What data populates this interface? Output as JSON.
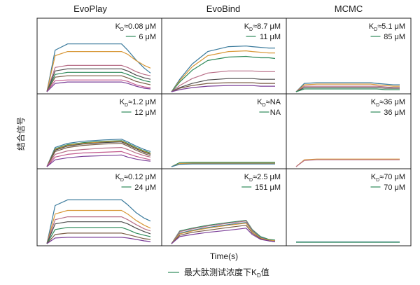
{
  "figure": {
    "column_titles": [
      "EvoPlay",
      "EvoBind",
      "MCMC"
    ],
    "ylabel": "结合信号",
    "xlabel": "Time(s)",
    "caption": {
      "prefix": "最大肽测试浓度下K",
      "sub": "D",
      "suffix": "值"
    }
  },
  "chart_data": [
    {
      "type": "line",
      "row": 0,
      "col": 0,
      "method": "EvoPlay",
      "kd_label": "≈0.08 μM",
      "conc_label": "6 μM",
      "x": [
        0,
        0.08,
        0.2,
        0.35,
        0.55,
        0.72,
        0.78,
        0.86,
        0.94,
        1.0
      ],
      "series": [
        {
          "color": "#3a7a9c",
          "values": [
            0,
            0.6,
            0.69,
            0.69,
            0.69,
            0.69,
            0.6,
            0.46,
            0.34,
            0.27
          ]
        },
        {
          "color": "#d89838",
          "values": [
            0,
            0.52,
            0.58,
            0.58,
            0.58,
            0.58,
            0.54,
            0.45,
            0.38,
            0.34
          ]
        },
        {
          "color": "#b86f88",
          "values": [
            0,
            0.35,
            0.38,
            0.38,
            0.38,
            0.38,
            0.35,
            0.29,
            0.25,
            0.23
          ]
        },
        {
          "color": "#4d4d4d",
          "values": [
            0,
            0.3,
            0.33,
            0.33,
            0.33,
            0.33,
            0.3,
            0.24,
            0.2,
            0.18
          ]
        },
        {
          "color": "#2e8a5a",
          "values": [
            0,
            0.25,
            0.28,
            0.28,
            0.28,
            0.28,
            0.25,
            0.2,
            0.16,
            0.14
          ]
        },
        {
          "color": "#7a5c44",
          "values": [
            0,
            0.21,
            0.23,
            0.23,
            0.23,
            0.23,
            0.2,
            0.15,
            0.12,
            0.1
          ]
        },
        {
          "color": "#c25a8e",
          "values": [
            0,
            0.16,
            0.17,
            0.17,
            0.17,
            0.17,
            0.15,
            0.1,
            0.07,
            0.06
          ]
        },
        {
          "color": "#7b3f98",
          "values": [
            0,
            0.12,
            0.14,
            0.14,
            0.14,
            0.14,
            0.12,
            0.08,
            0.05,
            0.04
          ]
        }
      ]
    },
    {
      "type": "line",
      "row": 0,
      "col": 1,
      "method": "EvoBind",
      "kd_label": "≈8.7 μM",
      "conc_label": "11 μM",
      "x": [
        0,
        0.08,
        0.2,
        0.35,
        0.55,
        0.72,
        0.78,
        0.86,
        0.94,
        1.0
      ],
      "series": [
        {
          "color": "#3a7a9c",
          "values": [
            0,
            0.18,
            0.4,
            0.58,
            0.65,
            0.66,
            0.65,
            0.64,
            0.63,
            0.63
          ]
        },
        {
          "color": "#d89838",
          "values": [
            0,
            0.16,
            0.36,
            0.52,
            0.58,
            0.59,
            0.58,
            0.57,
            0.56,
            0.56
          ]
        },
        {
          "color": "#2e8a5a",
          "values": [
            0,
            0.14,
            0.31,
            0.45,
            0.5,
            0.51,
            0.5,
            0.49,
            0.49,
            0.48
          ]
        },
        {
          "color": "#b86f88",
          "values": [
            0,
            0.09,
            0.19,
            0.27,
            0.3,
            0.3,
            0.3,
            0.29,
            0.29,
            0.29
          ]
        },
        {
          "color": "#4d4d4d",
          "values": [
            0,
            0.06,
            0.12,
            0.17,
            0.19,
            0.19,
            0.19,
            0.18,
            0.18,
            0.18
          ]
        },
        {
          "color": "#7a5c44",
          "values": [
            0,
            0.05,
            0.09,
            0.12,
            0.13,
            0.13,
            0.13,
            0.12,
            0.12,
            0.12
          ]
        },
        {
          "color": "#7b3f98",
          "values": [
            0,
            0.03,
            0.06,
            0.08,
            0.09,
            0.09,
            0.09,
            0.08,
            0.08,
            0.08
          ]
        }
      ]
    },
    {
      "type": "line",
      "row": 0,
      "col": 2,
      "method": "MCMC",
      "kd_label": "≈5.1 μM",
      "conc_label": "85 μM",
      "x": [
        0,
        0.08,
        0.2,
        0.35,
        0.55,
        0.72,
        0.78,
        0.86,
        0.94,
        1.0
      ],
      "series": [
        {
          "color": "#3a7a9c",
          "values": [
            0,
            0.12,
            0.13,
            0.13,
            0.13,
            0.13,
            0.12,
            0.11,
            0.1,
            0.1
          ]
        },
        {
          "color": "#d89838",
          "values": [
            0,
            0.1,
            0.11,
            0.11,
            0.11,
            0.11,
            0.1,
            0.09,
            0.08,
            0.08
          ]
        },
        {
          "color": "#b86f88",
          "values": [
            0,
            0.08,
            0.08,
            0.08,
            0.08,
            0.08,
            0.08,
            0.07,
            0.06,
            0.06
          ]
        },
        {
          "color": "#4d4d4d",
          "values": [
            0,
            0.06,
            0.06,
            0.06,
            0.06,
            0.06,
            0.06,
            0.05,
            0.05,
            0.05
          ]
        },
        {
          "color": "#2e8a5a",
          "values": [
            0,
            0.04,
            0.04,
            0.04,
            0.04,
            0.04,
            0.04,
            0.03,
            0.03,
            0.03
          ]
        }
      ]
    },
    {
      "type": "line",
      "row": 1,
      "col": 0,
      "method": "EvoPlay",
      "kd_label": "≈1.2 μM",
      "conc_label": "12 μM",
      "x": [
        0,
        0.08,
        0.2,
        0.35,
        0.55,
        0.72,
        0.78,
        0.86,
        0.94,
        1.0
      ],
      "series": [
        {
          "color": "#3a7a9c",
          "values": [
            0,
            0.28,
            0.34,
            0.37,
            0.39,
            0.4,
            0.36,
            0.3,
            0.25,
            0.22
          ]
        },
        {
          "color": "#2e8a5a",
          "values": [
            0,
            0.26,
            0.32,
            0.35,
            0.37,
            0.38,
            0.34,
            0.28,
            0.23,
            0.2
          ]
        },
        {
          "color": "#d89838",
          "values": [
            0,
            0.25,
            0.31,
            0.34,
            0.36,
            0.37,
            0.33,
            0.27,
            0.22,
            0.19
          ]
        },
        {
          "color": "#4d4d4d",
          "values": [
            0,
            0.24,
            0.3,
            0.33,
            0.35,
            0.36,
            0.32,
            0.26,
            0.21,
            0.18
          ]
        },
        {
          "color": "#7a5c44",
          "values": [
            0,
            0.22,
            0.28,
            0.31,
            0.33,
            0.34,
            0.3,
            0.24,
            0.19,
            0.16
          ]
        },
        {
          "color": "#b86f88",
          "values": [
            0,
            0.18,
            0.23,
            0.25,
            0.27,
            0.28,
            0.25,
            0.2,
            0.16,
            0.14
          ]
        },
        {
          "color": "#c25a8e",
          "values": [
            0,
            0.14,
            0.18,
            0.2,
            0.21,
            0.22,
            0.19,
            0.15,
            0.12,
            0.1
          ]
        },
        {
          "color": "#7b3f98",
          "values": [
            0,
            0.1,
            0.13,
            0.15,
            0.16,
            0.17,
            0.14,
            0.11,
            0.09,
            0.08
          ]
        }
      ]
    },
    {
      "type": "line",
      "row": 1,
      "col": 1,
      "method": "EvoBind",
      "kd_label": "≈NA",
      "conc_label": "NA",
      "x": [
        0,
        0.08,
        0.2,
        0.35,
        0.55,
        0.72,
        0.78,
        0.86,
        0.94,
        1.0
      ],
      "series": [
        {
          "color": "#2e8a5a",
          "values": [
            0,
            0.06,
            0.065,
            0.065,
            0.065,
            0.065,
            0.065,
            0.065,
            0.065,
            0.065
          ]
        },
        {
          "color": "#d89838",
          "values": [
            0,
            0.045,
            0.05,
            0.05,
            0.05,
            0.05,
            0.05,
            0.05,
            0.05,
            0.05
          ]
        },
        {
          "color": "#3a7a9c",
          "values": [
            0,
            0.035,
            0.04,
            0.04,
            0.04,
            0.04,
            0.04,
            0.04,
            0.04,
            0.04
          ]
        }
      ]
    },
    {
      "type": "line",
      "row": 1,
      "col": 2,
      "method": "MCMC",
      "kd_label": "≈36 μM",
      "conc_label": "36 μM",
      "x": [
        0,
        0.08,
        0.2,
        0.35,
        0.55,
        0.72,
        0.78,
        0.86,
        0.94,
        1.0
      ],
      "series": [
        {
          "color": "#d89838",
          "values": [
            0,
            0.1,
            0.11,
            0.11,
            0.11,
            0.11,
            0.11,
            0.11,
            0.11,
            0.11
          ]
        },
        {
          "color": "#b86f88",
          "values": [
            0,
            0.09,
            0.1,
            0.1,
            0.1,
            0.1,
            0.1,
            0.1,
            0.1,
            0.1
          ]
        }
      ]
    },
    {
      "type": "line",
      "row": 2,
      "col": 0,
      "method": "EvoPlay",
      "kd_label": "≈0.12 μM",
      "conc_label": "24 μM",
      "x": [
        0,
        0.08,
        0.2,
        0.35,
        0.55,
        0.72,
        0.78,
        0.86,
        0.94,
        1.0
      ],
      "series": [
        {
          "color": "#3a7a9c",
          "values": [
            0,
            0.54,
            0.62,
            0.62,
            0.62,
            0.62,
            0.55,
            0.44,
            0.36,
            0.32
          ]
        },
        {
          "color": "#d89838",
          "values": [
            0,
            0.42,
            0.47,
            0.47,
            0.47,
            0.47,
            0.42,
            0.33,
            0.26,
            0.22
          ]
        },
        {
          "color": "#b86f88",
          "values": [
            0,
            0.34,
            0.38,
            0.38,
            0.38,
            0.38,
            0.34,
            0.27,
            0.21,
            0.18
          ]
        },
        {
          "color": "#4d4d4d",
          "values": [
            0,
            0.28,
            0.31,
            0.31,
            0.31,
            0.31,
            0.28,
            0.22,
            0.17,
            0.14
          ]
        },
        {
          "color": "#2e8a5a",
          "values": [
            0,
            0.2,
            0.23,
            0.23,
            0.23,
            0.23,
            0.2,
            0.15,
            0.12,
            0.1
          ]
        },
        {
          "color": "#7a5c44",
          "values": [
            0,
            0.13,
            0.15,
            0.15,
            0.15,
            0.15,
            0.13,
            0.1,
            0.07,
            0.06
          ]
        },
        {
          "color": "#7b3f98",
          "values": [
            0,
            0.08,
            0.09,
            0.09,
            0.09,
            0.09,
            0.08,
            0.06,
            0.04,
            0.03
          ]
        }
      ]
    },
    {
      "type": "line",
      "row": 2,
      "col": 1,
      "method": "EvoBind",
      "kd_label": "≈2.5 μM",
      "conc_label": "151 μM",
      "x": [
        0,
        0.08,
        0.2,
        0.35,
        0.55,
        0.72,
        0.78,
        0.86,
        0.94,
        1.0
      ],
      "series": [
        {
          "color": "#2e8a5a",
          "values": [
            0,
            0.18,
            0.22,
            0.26,
            0.3,
            0.33,
            0.2,
            0.1,
            0.06,
            0.05
          ]
        },
        {
          "color": "#b86f88",
          "values": [
            0,
            0.17,
            0.21,
            0.25,
            0.29,
            0.32,
            0.19,
            0.09,
            0.05,
            0.04
          ]
        },
        {
          "color": "#3a7a9c",
          "values": [
            0,
            0.15,
            0.19,
            0.23,
            0.27,
            0.3,
            0.18,
            0.09,
            0.05,
            0.04
          ]
        },
        {
          "color": "#d89838",
          "values": [
            0,
            0.14,
            0.18,
            0.22,
            0.26,
            0.29,
            0.17,
            0.08,
            0.05,
            0.04
          ]
        },
        {
          "color": "#7a5c44",
          "values": [
            0,
            0.12,
            0.16,
            0.19,
            0.23,
            0.26,
            0.15,
            0.07,
            0.04,
            0.03
          ]
        },
        {
          "color": "#7b3f98",
          "values": [
            0,
            0.1,
            0.13,
            0.16,
            0.19,
            0.22,
            0.13,
            0.06,
            0.04,
            0.03
          ]
        }
      ]
    },
    {
      "type": "line",
      "row": 2,
      "col": 2,
      "method": "MCMC",
      "kd_label": "≈70 μM",
      "conc_label": "70 μM",
      "x": [
        0,
        0.08,
        0.2,
        0.35,
        0.55,
        0.72,
        0.78,
        0.86,
        0.94,
        1.0
      ],
      "series": [
        {
          "color": "#3a7a9c",
          "values": [
            0.025,
            0.025,
            0.025,
            0.025,
            0.025,
            0.025,
            0.025,
            0.025,
            0.025,
            0.025
          ]
        },
        {
          "color": "#2e8a5a",
          "values": [
            0.02,
            0.02,
            0.02,
            0.02,
            0.02,
            0.02,
            0.02,
            0.02,
            0.02,
            0.02
          ]
        }
      ]
    }
  ]
}
